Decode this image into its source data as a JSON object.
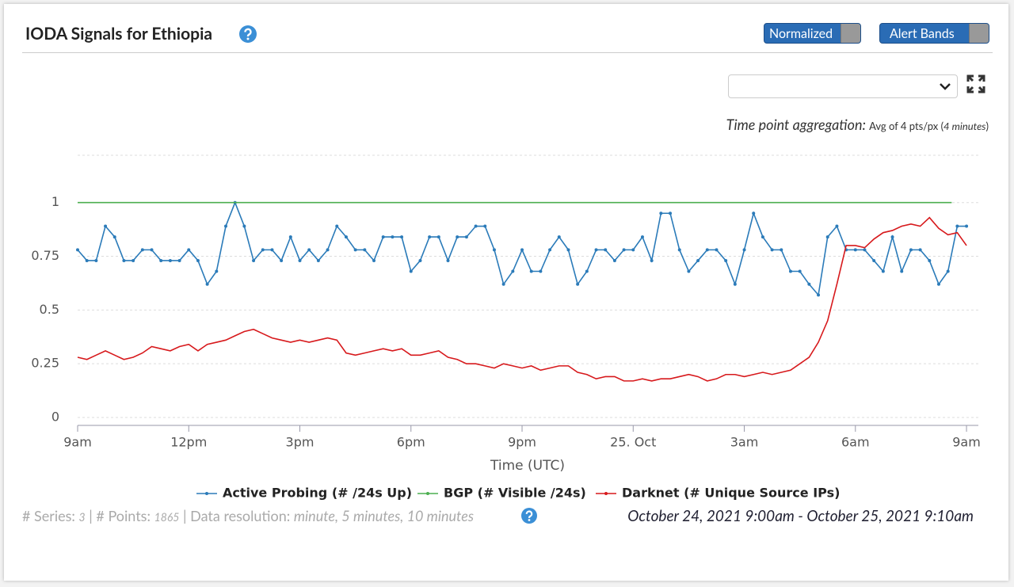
{
  "header": {
    "title": "IODA Signals for Ethiopia",
    "buttons": [
      "Normalized",
      "Alert Bands"
    ]
  },
  "aggregation": {
    "label": "Time point aggregation:",
    "text": "Avg of 4 pts/px (",
    "detail": "4 minutes",
    "close": ")"
  },
  "chart_data": {
    "type": "line",
    "xlabel": "Time (UTC)",
    "xlim": [
      0,
      24.17
    ],
    "xticks": [
      {
        "value": 0,
        "label": "9am"
      },
      {
        "value": 3,
        "label": "12pm"
      },
      {
        "value": 6,
        "label": "3pm"
      },
      {
        "value": 9,
        "label": "6pm"
      },
      {
        "value": 12,
        "label": "9pm"
      },
      {
        "value": 15,
        "label": "25. Oct"
      },
      {
        "value": 18,
        "label": "3am"
      },
      {
        "value": 21,
        "label": "6am"
      },
      {
        "value": 24,
        "label": "9am"
      }
    ],
    "ylim": [
      0,
      1.22
    ],
    "yticks": [
      0,
      0.25,
      0.5,
      0.75,
      1
    ],
    "grid": true,
    "x": [
      0,
      0.25,
      0.5,
      0.75,
      1,
      1.25,
      1.5,
      1.75,
      2,
      2.25,
      2.5,
      2.75,
      3,
      3.25,
      3.5,
      3.75,
      4,
      4.25,
      4.5,
      4.75,
      5,
      5.25,
      5.5,
      5.75,
      6,
      6.25,
      6.5,
      6.75,
      7,
      7.25,
      7.5,
      7.75,
      8,
      8.25,
      8.5,
      8.75,
      9,
      9.25,
      9.5,
      9.75,
      10,
      10.25,
      10.5,
      10.75,
      11,
      11.25,
      11.5,
      11.75,
      12,
      12.25,
      12.5,
      12.75,
      13,
      13.25,
      13.5,
      13.75,
      14,
      14.25,
      14.5,
      14.75,
      15,
      15.25,
      15.5,
      15.75,
      16,
      16.25,
      16.5,
      16.75,
      17,
      17.25,
      17.5,
      17.75,
      18,
      18.25,
      18.5,
      18.75,
      19,
      19.25,
      19.5,
      19.75,
      20,
      20.25,
      20.5,
      20.75,
      21,
      21.25,
      21.5,
      21.75,
      22,
      22.25,
      22.5,
      22.75,
      23,
      23.25,
      23.5,
      23.75,
      24
    ],
    "series": [
      {
        "name": "Active Probing (# /24s Up)",
        "color": "#2b7bb9",
        "markers": true,
        "values": [
          0.78,
          0.73,
          0.73,
          0.89,
          0.84,
          0.73,
          0.73,
          0.78,
          0.78,
          0.73,
          0.73,
          0.73,
          0.78,
          0.73,
          0.62,
          0.68,
          0.89,
          1,
          0.89,
          0.73,
          0.78,
          0.78,
          0.73,
          0.84,
          0.73,
          0.78,
          0.73,
          0.78,
          0.89,
          0.84,
          0.78,
          0.78,
          0.73,
          0.84,
          0.84,
          0.84,
          0.68,
          0.73,
          0.84,
          0.84,
          0.73,
          0.84,
          0.84,
          0.89,
          0.89,
          0.78,
          0.62,
          0.68,
          0.78,
          0.68,
          0.68,
          0.78,
          0.84,
          0.78,
          0.62,
          0.68,
          0.78,
          0.78,
          0.73,
          0.78,
          0.78,
          0.84,
          0.73,
          0.95,
          0.95,
          0.78,
          0.68,
          0.73,
          0.78,
          0.78,
          0.73,
          0.62,
          0.78,
          0.95,
          0.84,
          0.78,
          0.78,
          0.68,
          0.68,
          0.62,
          0.57,
          0.84,
          0.89,
          0.78,
          0.78,
          0.78,
          0.73,
          0.68,
          0.84,
          0.68,
          0.78,
          0.78,
          0.73,
          0.62,
          0.68,
          0.89,
          0.89
        ]
      },
      {
        "name": "BGP (# Visible /24s)",
        "color": "#4caf50",
        "markers": false,
        "x": [
          0,
          23.6
        ],
        "values": [
          1,
          1
        ]
      },
      {
        "name": "Darknet (# Unique Source IPs)",
        "color": "#d7191c",
        "markers": false,
        "values": [
          0.28,
          0.27,
          0.29,
          0.31,
          0.29,
          0.27,
          0.28,
          0.3,
          0.33,
          0.32,
          0.31,
          0.33,
          0.34,
          0.31,
          0.34,
          0.35,
          0.36,
          0.38,
          0.4,
          0.41,
          0.39,
          0.37,
          0.36,
          0.35,
          0.36,
          0.35,
          0.36,
          0.37,
          0.36,
          0.3,
          0.29,
          0.3,
          0.31,
          0.32,
          0.31,
          0.32,
          0.29,
          0.29,
          0.3,
          0.31,
          0.28,
          0.27,
          0.25,
          0.25,
          0.24,
          0.23,
          0.25,
          0.24,
          0.23,
          0.24,
          0.22,
          0.23,
          0.24,
          0.24,
          0.21,
          0.2,
          0.18,
          0.19,
          0.19,
          0.17,
          0.17,
          0.18,
          0.17,
          0.18,
          0.18,
          0.19,
          0.2,
          0.19,
          0.17,
          0.18,
          0.2,
          0.2,
          0.19,
          0.2,
          0.21,
          0.2,
          0.21,
          0.22,
          0.25,
          0.28,
          0.35,
          0.45,
          0.62,
          0.8,
          0.8,
          0.79,
          0.83,
          0.86,
          0.87,
          0.89,
          0.9,
          0.89,
          0.93,
          0.88,
          0.85,
          0.86,
          0.8
        ]
      }
    ]
  },
  "footer": {
    "series_label": "# Series: ",
    "series_count": "3",
    "points_label": " | # Points: ",
    "points_count": "1865",
    "resolution_label": " | Data resolution: ",
    "resolution": "minute, 5 minutes, 10 minutes",
    "range": "October 24, 2021 9:00am - October 25, 2021 9:10am"
  }
}
